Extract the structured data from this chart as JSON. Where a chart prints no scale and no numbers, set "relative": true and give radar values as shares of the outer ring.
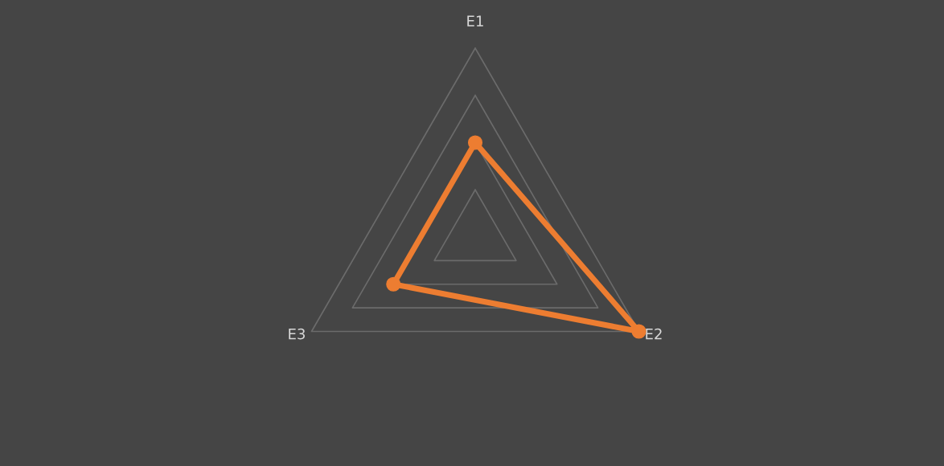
{
  "chart_data": {
    "type": "radar",
    "relative": true,
    "grid": true,
    "marker": "circle",
    "line_style": "solid",
    "categories": [
      "E1",
      "E2",
      "E3"
    ],
    "series": [
      {
        "color": "#ed7d31",
        "values": [
          0.5,
          1.0,
          0.5
        ]
      }
    ]
  }
}
